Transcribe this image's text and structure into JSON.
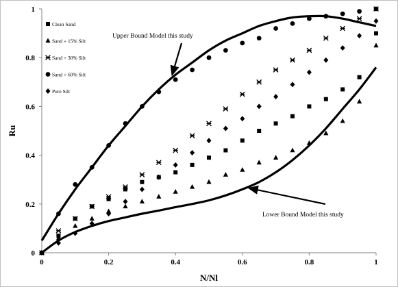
{
  "chart_data": {
    "type": "scatter",
    "title": "",
    "xlabel": "N/Nl",
    "ylabel": "Ru",
    "xlim": [
      0,
      1
    ],
    "ylim": [
      0,
      1
    ],
    "x_ticks": [
      "0",
      "0.2",
      "0.4",
      "0.6",
      "0.8",
      "1"
    ],
    "y_ticks": [
      "0",
      "0.2",
      "0.4",
      "0.6",
      "0.8",
      "1"
    ],
    "grid": false,
    "legend_position": "top-left",
    "series": [
      {
        "name": "Clean Sand",
        "marker": "square",
        "points": [
          [
            0,
            0
          ],
          [
            0.05,
            0.07
          ],
          [
            0.1,
            0.14
          ],
          [
            0.15,
            0.19
          ],
          [
            0.2,
            0.22
          ],
          [
            0.25,
            0.26
          ],
          [
            0.3,
            0.29
          ],
          [
            0.35,
            0.31
          ],
          [
            0.4,
            0.33
          ],
          [
            0.45,
            0.36
          ],
          [
            0.5,
            0.39
          ],
          [
            0.55,
            0.42
          ],
          [
            0.6,
            0.46
          ],
          [
            0.65,
            0.5
          ],
          [
            0.7,
            0.53
          ],
          [
            0.75,
            0.56
          ],
          [
            0.8,
            0.6
          ],
          [
            0.85,
            0.63
          ],
          [
            0.9,
            0.67
          ],
          [
            0.95,
            0.72
          ],
          [
            1,
            0.9
          ]
        ]
      },
      {
        "name": "Sand + 15% Silt",
        "marker": "triangle",
        "points": [
          [
            0,
            0
          ],
          [
            0.05,
            0.06
          ],
          [
            0.1,
            0.11
          ],
          [
            0.15,
            0.14
          ],
          [
            0.2,
            0.17
          ],
          [
            0.25,
            0.19
          ],
          [
            0.3,
            0.21
          ],
          [
            0.35,
            0.23
          ],
          [
            0.4,
            0.25
          ],
          [
            0.45,
            0.27
          ],
          [
            0.5,
            0.29
          ],
          [
            0.55,
            0.32
          ],
          [
            0.6,
            0.34
          ],
          [
            0.65,
            0.37
          ],
          [
            0.7,
            0.39
          ],
          [
            0.75,
            0.42
          ],
          [
            0.8,
            0.45
          ],
          [
            0.85,
            0.49
          ],
          [
            0.9,
            0.54
          ],
          [
            0.95,
            0.62
          ],
          [
            1,
            0.85
          ]
        ]
      },
      {
        "name": "Sand + 30% Silt",
        "marker": "asterisk",
        "points": [
          [
            0,
            0
          ],
          [
            0.05,
            0.09
          ],
          [
            0.1,
            0.14
          ],
          [
            0.15,
            0.19
          ],
          [
            0.2,
            0.23
          ],
          [
            0.25,
            0.27
          ],
          [
            0.3,
            0.32
          ],
          [
            0.35,
            0.37
          ],
          [
            0.4,
            0.42
          ],
          [
            0.45,
            0.48
          ],
          [
            0.5,
            0.53
          ],
          [
            0.55,
            0.59
          ],
          [
            0.6,
            0.65
          ],
          [
            0.65,
            0.7
          ],
          [
            0.7,
            0.75
          ],
          [
            0.75,
            0.79
          ],
          [
            0.8,
            0.83
          ],
          [
            0.85,
            0.88
          ],
          [
            0.9,
            0.92
          ],
          [
            0.95,
            0.96
          ],
          [
            1,
            1
          ]
        ]
      },
      {
        "name": "Sand + 60% Silt",
        "marker": "circle",
        "points": [
          [
            0,
            0
          ],
          [
            0.05,
            0.16
          ],
          [
            0.1,
            0.28
          ],
          [
            0.15,
            0.35
          ],
          [
            0.2,
            0.44
          ],
          [
            0.25,
            0.53
          ],
          [
            0.3,
            0.6
          ],
          [
            0.35,
            0.66
          ],
          [
            0.4,
            0.71
          ],
          [
            0.45,
            0.75
          ],
          [
            0.5,
            0.8
          ],
          [
            0.55,
            0.83
          ],
          [
            0.6,
            0.86
          ],
          [
            0.65,
            0.88
          ],
          [
            0.7,
            0.92
          ],
          [
            0.75,
            0.94
          ],
          [
            0.8,
            0.96
          ],
          [
            0.85,
            0.97
          ],
          [
            0.9,
            0.98
          ],
          [
            0.95,
            0.99
          ],
          [
            1,
            1
          ]
        ]
      },
      {
        "name": "Pure Silt",
        "marker": "diamond",
        "points": [
          [
            0,
            0
          ],
          [
            0.05,
            0.04
          ],
          [
            0.1,
            0.08
          ],
          [
            0.15,
            0.12
          ],
          [
            0.2,
            0.16
          ],
          [
            0.25,
            0.21
          ],
          [
            0.3,
            0.26
          ],
          [
            0.35,
            0.31
          ],
          [
            0.4,
            0.36
          ],
          [
            0.45,
            0.41
          ],
          [
            0.5,
            0.46
          ],
          [
            0.55,
            0.51
          ],
          [
            0.6,
            0.55
          ],
          [
            0.65,
            0.6
          ],
          [
            0.7,
            0.64
          ],
          [
            0.75,
            0.69
          ],
          [
            0.8,
            0.74
          ],
          [
            0.85,
            0.79
          ],
          [
            0.9,
            0.84
          ],
          [
            0.95,
            0.89
          ],
          [
            1,
            0.95
          ]
        ]
      }
    ],
    "curves": [
      {
        "name": "Upper Bound Model this study",
        "points": [
          [
            0,
            0.05
          ],
          [
            0.05,
            0.16
          ],
          [
            0.1,
            0.26
          ],
          [
            0.15,
            0.35
          ],
          [
            0.2,
            0.44
          ],
          [
            0.25,
            0.52
          ],
          [
            0.3,
            0.6
          ],
          [
            0.35,
            0.67
          ],
          [
            0.4,
            0.73
          ],
          [
            0.45,
            0.78
          ],
          [
            0.5,
            0.83
          ],
          [
            0.55,
            0.87
          ],
          [
            0.6,
            0.9
          ],
          [
            0.65,
            0.93
          ],
          [
            0.7,
            0.95
          ],
          [
            0.75,
            0.965
          ],
          [
            0.8,
            0.97
          ],
          [
            0.85,
            0.97
          ],
          [
            0.9,
            0.96
          ],
          [
            0.95,
            0.945
          ],
          [
            1,
            0.93
          ]
        ]
      },
      {
        "name": "Lower Bound Model this study",
        "points": [
          [
            0,
            0
          ],
          [
            0.05,
            0.05
          ],
          [
            0.1,
            0.085
          ],
          [
            0.15,
            0.11
          ],
          [
            0.2,
            0.13
          ],
          [
            0.25,
            0.145
          ],
          [
            0.3,
            0.16
          ],
          [
            0.35,
            0.173
          ],
          [
            0.4,
            0.187
          ],
          [
            0.45,
            0.2
          ],
          [
            0.5,
            0.215
          ],
          [
            0.55,
            0.235
          ],
          [
            0.6,
            0.26
          ],
          [
            0.65,
            0.29
          ],
          [
            0.7,
            0.33
          ],
          [
            0.75,
            0.38
          ],
          [
            0.8,
            0.44
          ],
          [
            0.85,
            0.51
          ],
          [
            0.9,
            0.59
          ],
          [
            0.95,
            0.67
          ],
          [
            1,
            0.76
          ]
        ]
      }
    ],
    "annotations": [
      {
        "text": "Upper Bound Model  this study",
        "target": [
          0.39,
          0.73
        ]
      },
      {
        "text": "Lower Bound Model this study",
        "target": [
          0.62,
          0.265
        ]
      }
    ]
  }
}
